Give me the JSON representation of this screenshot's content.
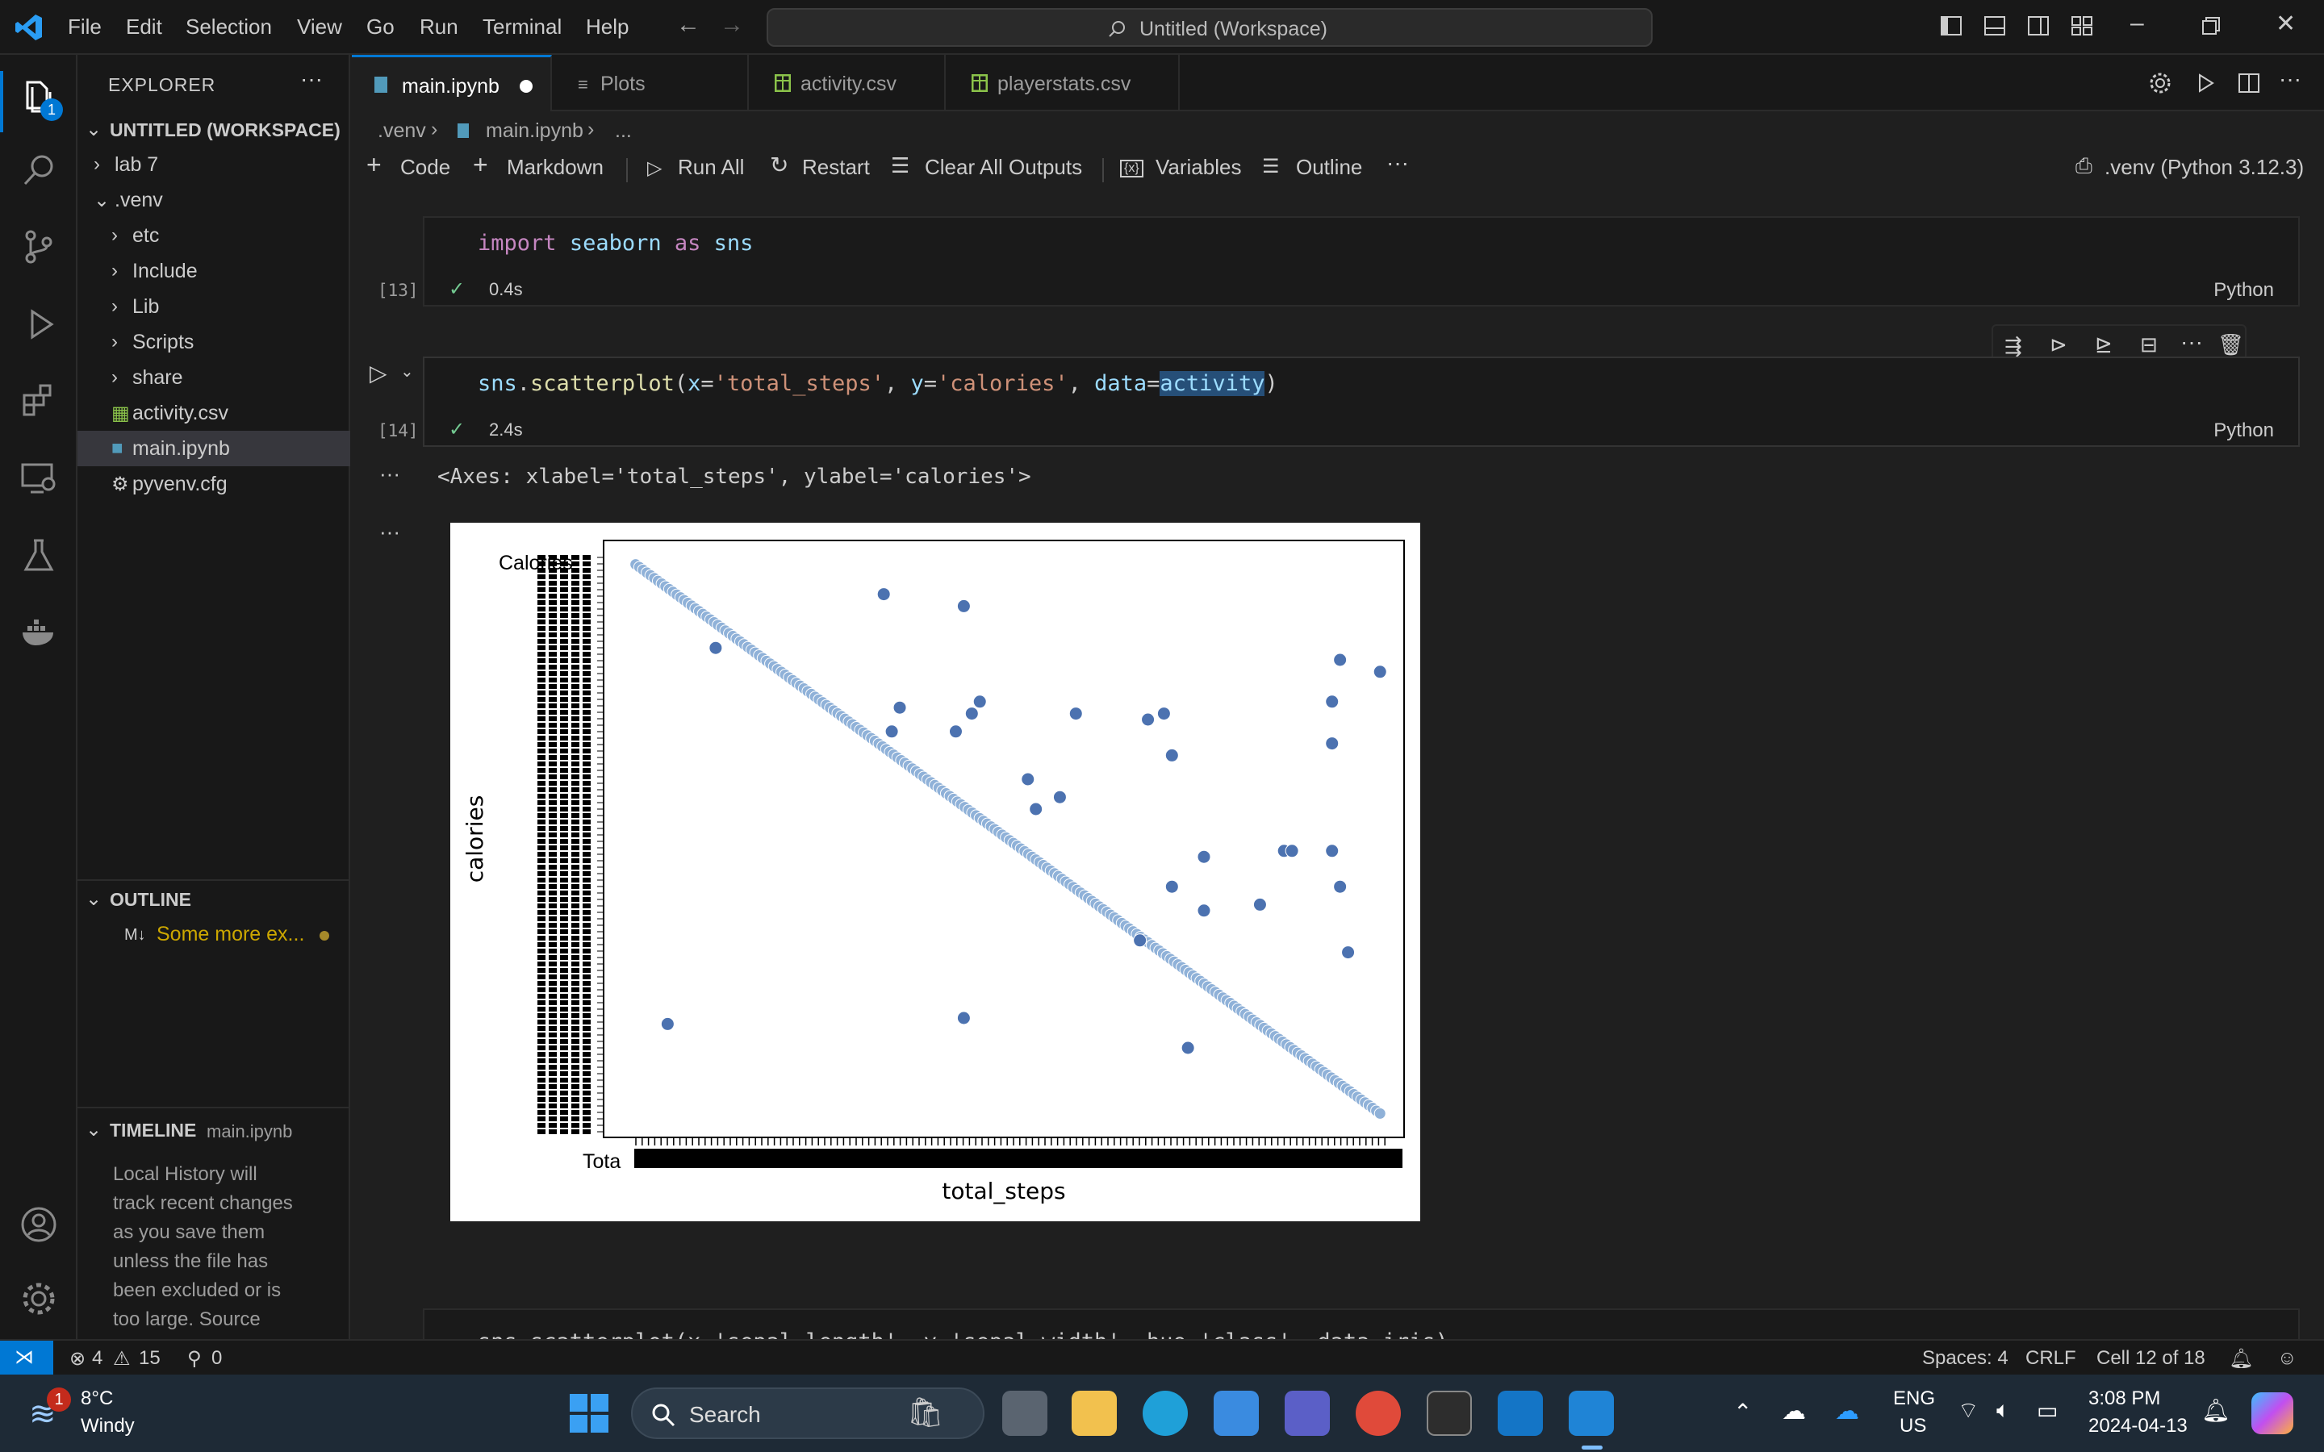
{
  "titlebar": {
    "menus": [
      "File",
      "Edit",
      "Selection",
      "View",
      "Go",
      "Run",
      "Terminal",
      "Help"
    ],
    "search_text": "Untitled (Workspace)"
  },
  "activitybar": {
    "explorer_badge": "1"
  },
  "sidebar": {
    "explorer_title": "EXPLORER",
    "workspace_title": "UNTITLED (WORKSPACE)",
    "tree": [
      {
        "label": "lab 7",
        "indent": 0,
        "chevron": "›"
      },
      {
        "label": ".venv",
        "indent": 0,
        "chevron": "⌄"
      },
      {
        "label": "etc",
        "indent": 1,
        "chevron": "›"
      },
      {
        "label": "Include",
        "indent": 1,
        "chevron": "›"
      },
      {
        "label": "Lib",
        "indent": 1,
        "chevron": "›"
      },
      {
        "label": "Scripts",
        "indent": 1,
        "chevron": "›"
      },
      {
        "label": "share",
        "indent": 1,
        "chevron": "›"
      },
      {
        "label": "activity.csv",
        "indent": 1,
        "chevron": ""
      },
      {
        "label": "main.ipynb",
        "indent": 1,
        "chevron": ""
      },
      {
        "label": "pyvenv.cfg",
        "indent": 1,
        "chevron": ""
      }
    ],
    "outline_title": "OUTLINE",
    "outline_item": "Some more ex...",
    "outline_prefix": "M↓",
    "timeline_title": "TIMELINE",
    "timeline_file": "main.ipynb",
    "timeline_text": [
      "Local History will",
      "track recent changes",
      "as you save them",
      "unless the file has",
      "been excluded or is",
      "too large. Source"
    ]
  },
  "tabs": [
    {
      "label": "main.ipynb",
      "active": true
    },
    {
      "label": "Plots",
      "active": false
    },
    {
      "label": "activity.csv",
      "active": false
    },
    {
      "label": "playerstats.csv",
      "active": false
    }
  ],
  "breadcrumb": {
    "p1": ".venv",
    "p2": "main.ipynb",
    "p3": "..."
  },
  "nbtoolbar": {
    "code": "Code",
    "markdown": "Markdown",
    "run_all": "Run All",
    "restart": "Restart",
    "clear_outputs": "Clear All Outputs",
    "variables": "Variables",
    "outline": "Outline",
    "kernel": ".venv (Python 3.12.3)"
  },
  "cells": {
    "c13": {
      "count": "[13]",
      "time": "0.4s",
      "lang": "Python"
    },
    "c14": {
      "count": "[14]",
      "time": "2.4s",
      "lang": "Python"
    },
    "output_text": "<Axes: xlabel='total_steps', ylabel='calories'>",
    "next_cell_text": "sns.scatterplot(x='sepal_length', y='sepal_width', hue='class', data=iris)"
  },
  "chart_data": {
    "type": "scatter",
    "xlabel": "total_steps",
    "ylabel": "calories",
    "overlapped_tick_fragments": {
      "y_top": "Calories",
      "x_left": "Tota"
    },
    "note_values": "categorical axes; values are category index fractions",
    "diagonal_series": {
      "count": 200,
      "from": [
        0.04,
        0.96
      ],
      "to": [
        0.97,
        0.04
      ]
    },
    "scatter_points": [
      [
        0.08,
        0.19
      ],
      [
        0.14,
        0.82
      ],
      [
        0.35,
        0.91
      ],
      [
        0.36,
        0.68
      ],
      [
        0.37,
        0.72
      ],
      [
        0.44,
        0.68
      ],
      [
        0.45,
        0.89
      ],
      [
        0.46,
        0.71
      ],
      [
        0.47,
        0.73
      ],
      [
        0.45,
        0.2
      ],
      [
        0.53,
        0.6
      ],
      [
        0.54,
        0.55
      ],
      [
        0.57,
        0.57
      ],
      [
        0.59,
        0.71
      ],
      [
        0.68,
        0.7
      ],
      [
        0.7,
        0.71
      ],
      [
        0.71,
        0.64
      ],
      [
        0.71,
        0.42
      ],
      [
        0.75,
        0.38
      ],
      [
        0.82,
        0.39
      ],
      [
        0.67,
        0.33
      ],
      [
        0.73,
        0.15
      ],
      [
        0.85,
        0.48
      ],
      [
        0.86,
        0.48
      ],
      [
        0.91,
        0.48
      ],
      [
        0.92,
        0.42
      ],
      [
        0.93,
        0.31
      ],
      [
        0.91,
        0.73
      ],
      [
        0.92,
        0.8
      ],
      [
        0.91,
        0.66
      ],
      [
        0.97,
        0.78
      ],
      [
        0.75,
        0.47
      ]
    ]
  },
  "statusbar": {
    "errors": "4",
    "warnings": "15",
    "ports": "0",
    "spaces": "Spaces: 4",
    "eol": "CRLF",
    "cell": "Cell 12 of 18"
  },
  "taskbar": {
    "weather_temp": "8°C",
    "weather_desc": "Windy",
    "weather_badge": "1",
    "search": "Search",
    "lang1": "ENG",
    "lang2": "US",
    "time": "3:08 PM",
    "date": "2024-04-13"
  },
  "colors": {
    "accent": "#0078d4",
    "remote": "#0078d4",
    "scatter": "#4c72b0"
  }
}
